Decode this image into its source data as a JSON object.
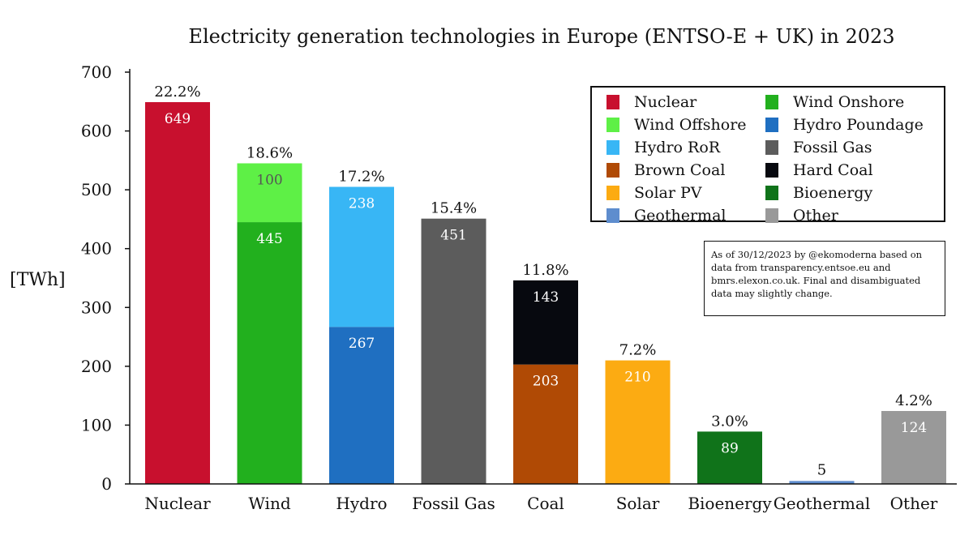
{
  "chart_data": {
    "type": "bar",
    "stacked": true,
    "title": "Electricity generation technologies in Europe (ENTSO-E + UK) in 2023",
    "ylabel": "[TWh]",
    "ylim": [
      0,
      700
    ],
    "yticks": [
      "0",
      "100",
      "200",
      "300",
      "400",
      "500",
      "600",
      "700"
    ],
    "categories": [
      "Nuclear",
      "Wind",
      "Hydro",
      "Fossil Gas",
      "Coal",
      "Solar",
      "Bioenergy",
      "Geothermal",
      "Other"
    ],
    "shares": [
      "22.2%",
      "18.6%",
      "17.2%",
      "15.4%",
      "11.8%",
      "7.2%",
      "3.0%",
      "",
      "4.2%"
    ],
    "bars": [
      {
        "segments": [
          {
            "series": "Nuclear",
            "value": 649,
            "label": "649"
          }
        ]
      },
      {
        "segments": [
          {
            "series": "Wind Onshore",
            "value": 445,
            "label": "445"
          },
          {
            "series": "Wind Offshore",
            "value": 100,
            "label": "100"
          }
        ]
      },
      {
        "segments": [
          {
            "series": "Hydro Poundage",
            "value": 267,
            "label": "267"
          },
          {
            "series": "Hydro RoR",
            "value": 238,
            "label": "238"
          }
        ]
      },
      {
        "segments": [
          {
            "series": "Fossil Gas",
            "value": 451,
            "label": "451"
          }
        ]
      },
      {
        "segments": [
          {
            "series": "Brown Coal",
            "value": 203,
            "label": "203"
          },
          {
            "series": "Hard Coal",
            "value": 143,
            "label": "143"
          }
        ]
      },
      {
        "segments": [
          {
            "series": "Solar PV",
            "value": 210,
            "label": "210"
          }
        ]
      },
      {
        "segments": [
          {
            "series": "Bioenergy",
            "value": 89,
            "label": "89"
          }
        ]
      },
      {
        "segments": [
          {
            "series": "Geothermal",
            "value": 5,
            "label": "5"
          }
        ]
      },
      {
        "segments": [
          {
            "series": "Other",
            "value": 124,
            "label": "124"
          }
        ]
      }
    ],
    "legend": {
      "placement": "top-right",
      "items": [
        {
          "name": "Nuclear",
          "color": "#c8102e"
        },
        {
          "name": "Wind Onshore",
          "color": "#22b01e"
        },
        {
          "name": "Wind Offshore",
          "color": "#5ef046"
        },
        {
          "name": "Hydro Poundage",
          "color": "#1f6fc1"
        },
        {
          "name": "Hydro RoR",
          "color": "#38b6f5"
        },
        {
          "name": "Fossil Gas",
          "color": "#5c5c5c"
        },
        {
          "name": "Brown Coal",
          "color": "#b04a05"
        },
        {
          "name": "Hard Coal",
          "color": "#07090f"
        },
        {
          "name": "Solar PV",
          "color": "#fcab12"
        },
        {
          "name": "Bioenergy",
          "color": "#10731a"
        },
        {
          "name": "Geothermal",
          "color": "#5e8dce"
        },
        {
          "name": "Other",
          "color": "#999999"
        }
      ]
    },
    "note": "As of 30/12/2023 by @ekomoderna based on data from transparency.entsoe.eu and bmrs.elexon.co.uk. Final and disambiguated data may slightly change.",
    "grid": false
  }
}
